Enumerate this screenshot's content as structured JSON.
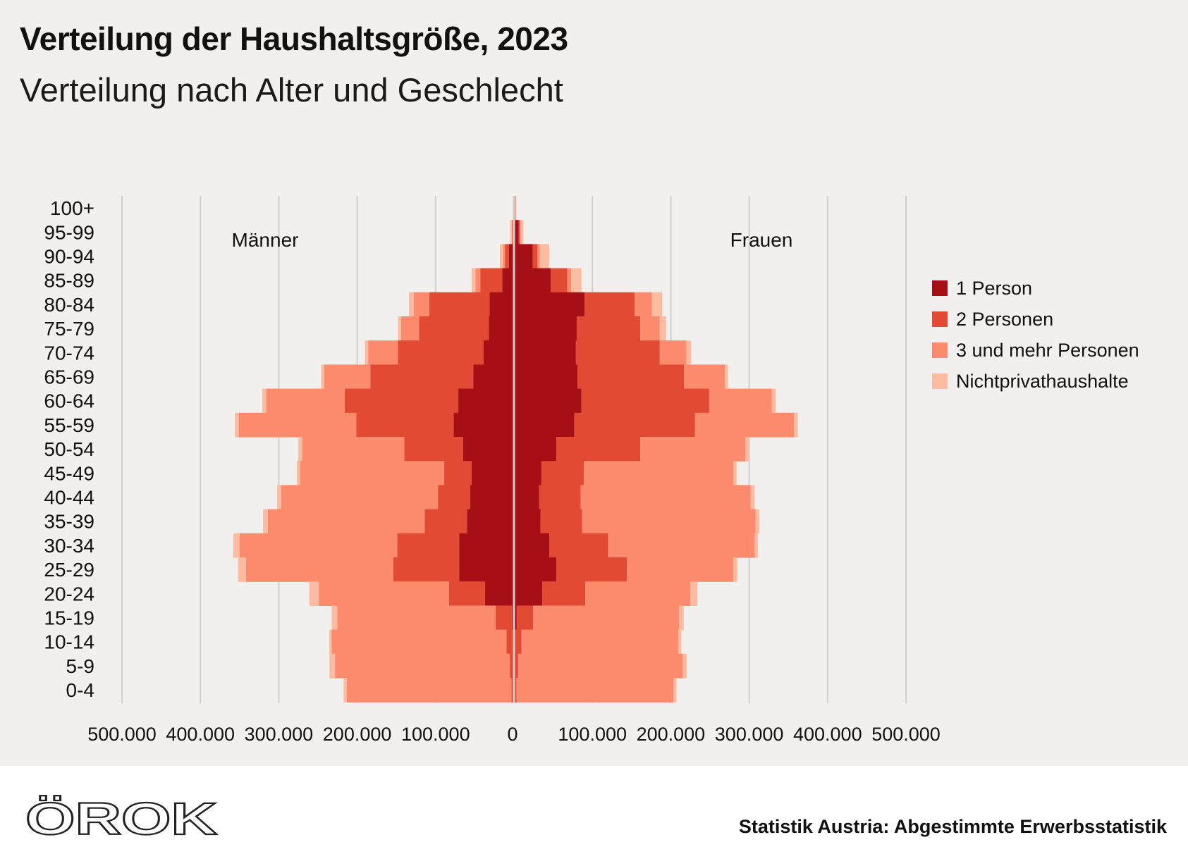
{
  "header": {
    "title": "Verteilung der Haushaltsgröße, 2023",
    "subtitle": "Verteilung nach Alter und Geschlecht"
  },
  "footer": {
    "logo_text": "ÖROK",
    "source": "Statistik Austria: Abgestimmte Erwerbsstatistik"
  },
  "colors": {
    "one_person": "#a50f15",
    "two_persons": "#e34a33",
    "three_plus": "#fc8b6e",
    "nonprivate": "#fdbba1",
    "background": "#f2f0ee",
    "grid": "#cfcfcf"
  },
  "chart_data": {
    "type": "bar",
    "orientation": "horizontal-population-pyramid",
    "title": "Verteilung der Haushaltsgröße, 2023",
    "subtitle": "Verteilung nach Alter und Geschlecht",
    "left_label": "Männer",
    "right_label": "Frauen",
    "xlim": [
      -500000,
      500000
    ],
    "x_ticks": [
      -500000,
      -400000,
      -300000,
      -200000,
      -100000,
      0,
      100000,
      200000,
      300000,
      400000,
      500000
    ],
    "x_tick_labels": [
      "500.000",
      "400.000",
      "300.000",
      "200.000",
      "100.000",
      "0",
      "100.000",
      "200.000",
      "300.000",
      "400.000",
      "500.000"
    ],
    "grid": true,
    "legend_position": "right",
    "categories": [
      "100+",
      "95-99",
      "90-94",
      "85-89",
      "80-84",
      "75-79",
      "70-74",
      "65-69",
      "60-64",
      "55-59",
      "50-54",
      "45-49",
      "40-44",
      "35-39",
      "30-34",
      "25-29",
      "20-24",
      "15-19",
      "10-14",
      "5-9",
      "0-4"
    ],
    "series": [
      {
        "name": "1 Person",
        "color": "#a50f15",
        "men": [
          300,
          1500,
          6500,
          15000,
          31000,
          32000,
          39000,
          52000,
          71000,
          77000,
          65000,
          54000,
          56000,
          60000,
          70000,
          70000,
          37000,
          2500,
          500,
          300,
          300
        ],
        "women": [
          1500,
          6000,
          24000,
          47000,
          90000,
          80000,
          79000,
          81000,
          86000,
          77000,
          54000,
          35000,
          32000,
          34000,
          45000,
          54000,
          36000,
          3500,
          500,
          300,
          300
        ]
      },
      {
        "name": "2 Personen",
        "color": "#e34a33",
        "men": [
          150,
          800,
          5000,
          28000,
          77000,
          89000,
          109000,
          131000,
          145000,
          124000,
          75000,
          35000,
          41000,
          54000,
          79000,
          84000,
          46000,
          21000,
          9000,
          5000,
          3000
        ],
        "women": [
          500,
          1500,
          6000,
          21000,
          64000,
          81000,
          107000,
          136000,
          163000,
          154000,
          107000,
          54000,
          53000,
          53000,
          75000,
          90000,
          55000,
          21000,
          9000,
          5000,
          3000
        ]
      },
      {
        "name": "3 und mehr Personen",
        "color": "#fc8b6e",
        "men": [
          50,
          500,
          2500,
          6000,
          20000,
          23000,
          38000,
          59000,
          100000,
          150000,
          130000,
          184000,
          200000,
          200000,
          201000,
          188000,
          166000,
          202000,
          223000,
          223000,
          210000
        ],
        "women": [
          200,
          1000,
          3000,
          5000,
          22000,
          25000,
          34000,
          52000,
          80000,
          126000,
          134000,
          191000,
          217000,
          221000,
          187000,
          136000,
          134000,
          186000,
          200000,
          210000,
          200000
        ]
      },
      {
        "name": "Nichtprivathaushalte",
        "color": "#fdbba1",
        "men": [
          250,
          2200,
          4000,
          5000,
          6000,
          4000,
          4000,
          4000,
          5000,
          5000,
          5000,
          4000,
          5000,
          6000,
          8000,
          10000,
          12000,
          7000,
          3000,
          7000,
          4000
        ],
        "women": [
          800,
          3500,
          12000,
          13000,
          13000,
          8000,
          6000,
          4000,
          5000,
          5000,
          5000,
          4000,
          5000,
          5000,
          4000,
          5000,
          9000,
          6000,
          4000,
          5000,
          4000
        ]
      }
    ]
  }
}
